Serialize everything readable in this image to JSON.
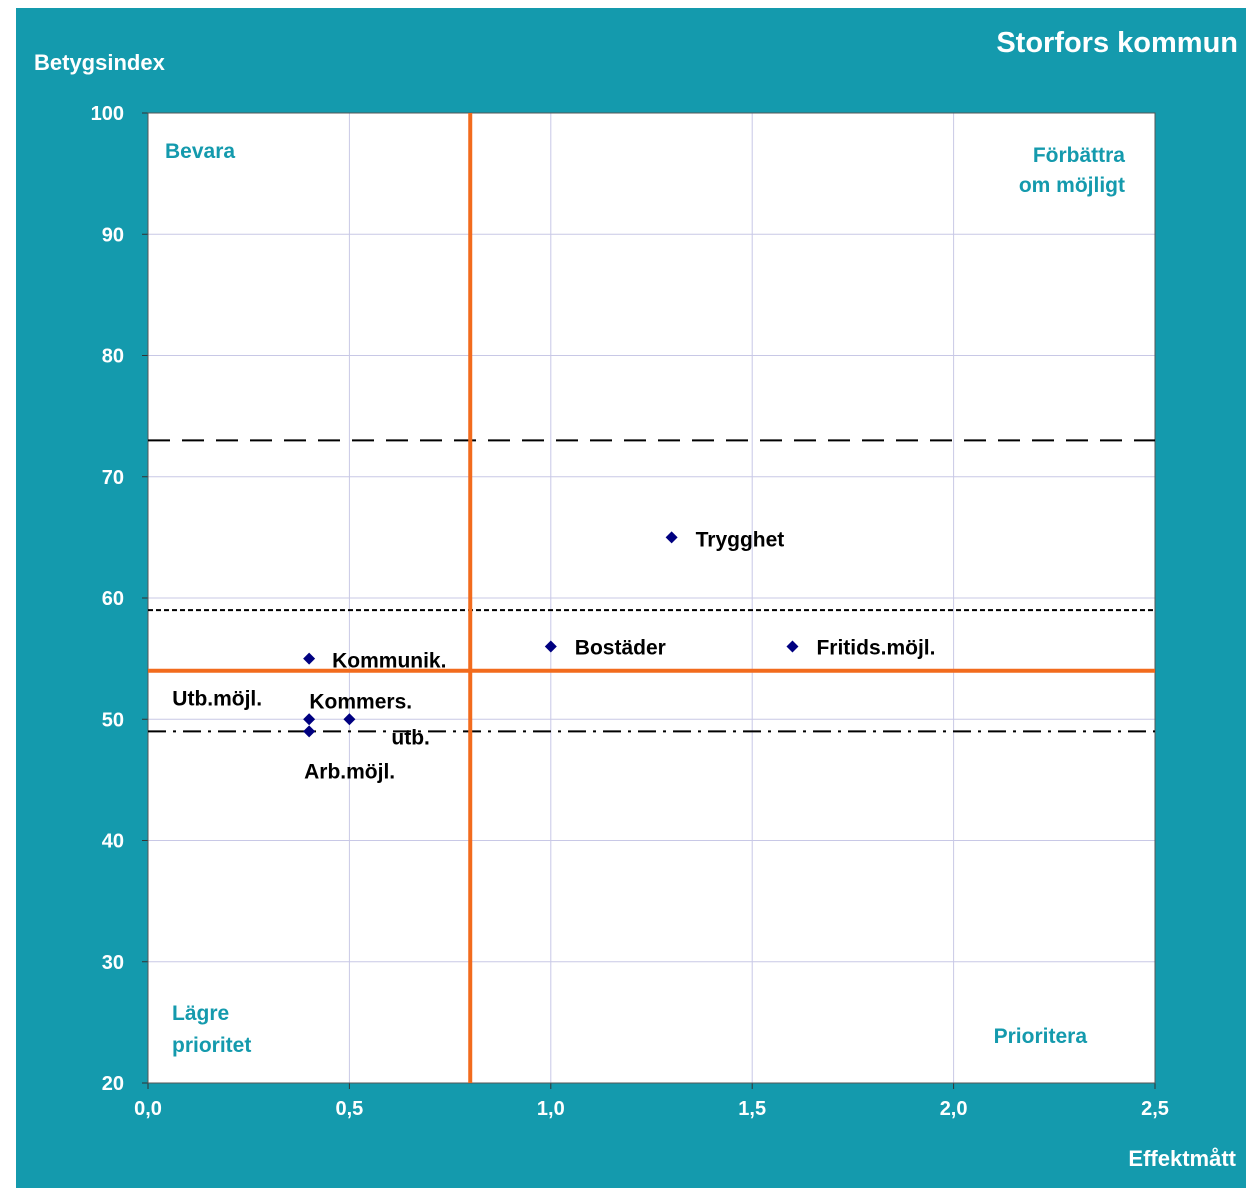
{
  "chart_data": {
    "type": "scatter",
    "title": "Storfors kommun",
    "xlabel": "Effektmått",
    "ylabel": "Betygsindex",
    "xlim": [
      0,
      2.5
    ],
    "ylim": [
      20,
      100
    ],
    "x_ticks": [
      "0,0",
      "0,5",
      "1,0",
      "1,5",
      "2,0",
      "2,5"
    ],
    "y_ticks": [
      "20",
      "30",
      "40",
      "50",
      "60",
      "70",
      "80",
      "90",
      "100"
    ],
    "grid": true,
    "points": [
      {
        "label": "Trygghet",
        "x": 1.3,
        "y": 65
      },
      {
        "label": "Bostäder",
        "x": 1.0,
        "y": 56
      },
      {
        "label": "Fritids.möjl.",
        "x": 1.6,
        "y": 56
      },
      {
        "label": "Kommunik.",
        "x": 0.4,
        "y": 55
      },
      {
        "label": "Utb.möjl.",
        "x": 0.4,
        "y": 50
      },
      {
        "label": "Kommers.",
        "x": 0.5,
        "y": 50
      },
      {
        "label": "utb.",
        "x": 0.5,
        "y": 50
      },
      {
        "label": "Arb.möjl.",
        "x": 0.4,
        "y": 49
      }
    ],
    "quadrant_lines": {
      "x": 0.8,
      "y": 54
    },
    "reference_lines": [
      {
        "y": 73,
        "style": "dashed"
      },
      {
        "y": 59,
        "style": "dotted"
      },
      {
        "y": 49,
        "style": "dash-dot"
      }
    ],
    "quadrant_labels": {
      "top_left": "Bevara",
      "top_right": [
        "Förbättra",
        "om möjligt"
      ],
      "bottom_left": [
        "Lägre",
        "prioritet"
      ],
      "bottom_right": "Prioritera"
    },
    "colors": {
      "background": "#149aad",
      "plot": "#ffffff",
      "grid": "#c8c8e6",
      "quadrant_line": "#f26b1d",
      "marker": "#000080",
      "quadrant_label": "#149aad"
    }
  }
}
